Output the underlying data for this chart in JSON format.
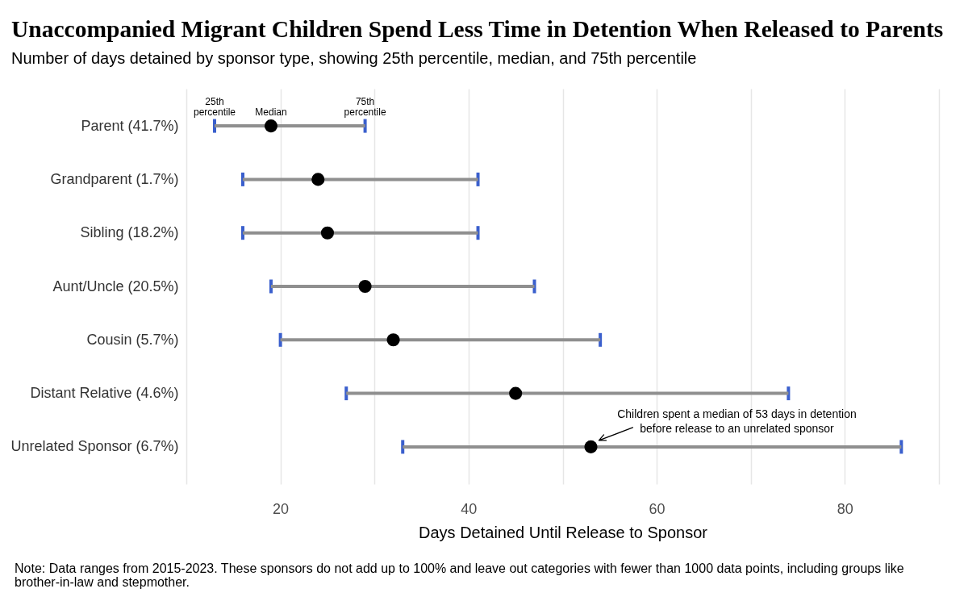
{
  "chart_data": {
    "type": "scatter",
    "orientation": "horizontal",
    "title": "Unaccompanied Migrant Children Spend Less Time in Detention When Released to Parents",
    "subtitle": "Number of days detained by sponsor type, showing 25th percentile, median, and 75th percentile",
    "xlabel": "Days Detained Until Release to Sponsor",
    "categories": [
      "Parent (41.7%)",
      "Grandparent (1.7%)",
      "Sibling (18.2%)",
      "Aunt/Uncle (20.5%)",
      "Cousin (5.7%)",
      "Distant Relative (4.6%)",
      "Unrelated Sponsor (6.7%)"
    ],
    "values": [
      19,
      24,
      25,
      29,
      32,
      45,
      53
    ],
    "errors": [
      [
        13,
        29
      ],
      [
        16,
        41
      ],
      [
        16,
        41
      ],
      [
        19,
        47
      ],
      [
        20,
        54
      ],
      [
        27,
        74
      ],
      [
        33,
        86
      ]
    ],
    "color": "#000000",
    "marker": "circle",
    "xlim": [
      10,
      90
    ],
    "xticks": [
      {
        "value": 10,
        "label": null
      },
      20,
      {
        "value": 30,
        "label": null
      },
      40,
      {
        "value": 50,
        "label": null
      },
      60,
      {
        "value": 70,
        "label": null
      },
      80,
      {
        "value": 90,
        "label": null
      }
    ],
    "grid": "x",
    "annotations": [
      {
        "text": "25th\npercentile",
        "x": 13,
        "y": "Parent (41.7%)"
      },
      {
        "text": "Median",
        "x": 19,
        "y": "Parent (41.7%)"
      },
      {
        "text": "75th\npercentile",
        "x": 29,
        "y": "Parent (41.7%)"
      },
      {
        "text": "Children spent a median of 53 days in detention\nbefore release to an unrelated sponsor",
        "x": 53,
        "y": "Unrelated Sponsor (6.7%)"
      },
      "Note: Data ranges from 2015-2023. These sponsors do not add up to 100% and leave out categories with fewer than 1000 data points, including groups like brother-in-law and stepmother."
    ]
  }
}
